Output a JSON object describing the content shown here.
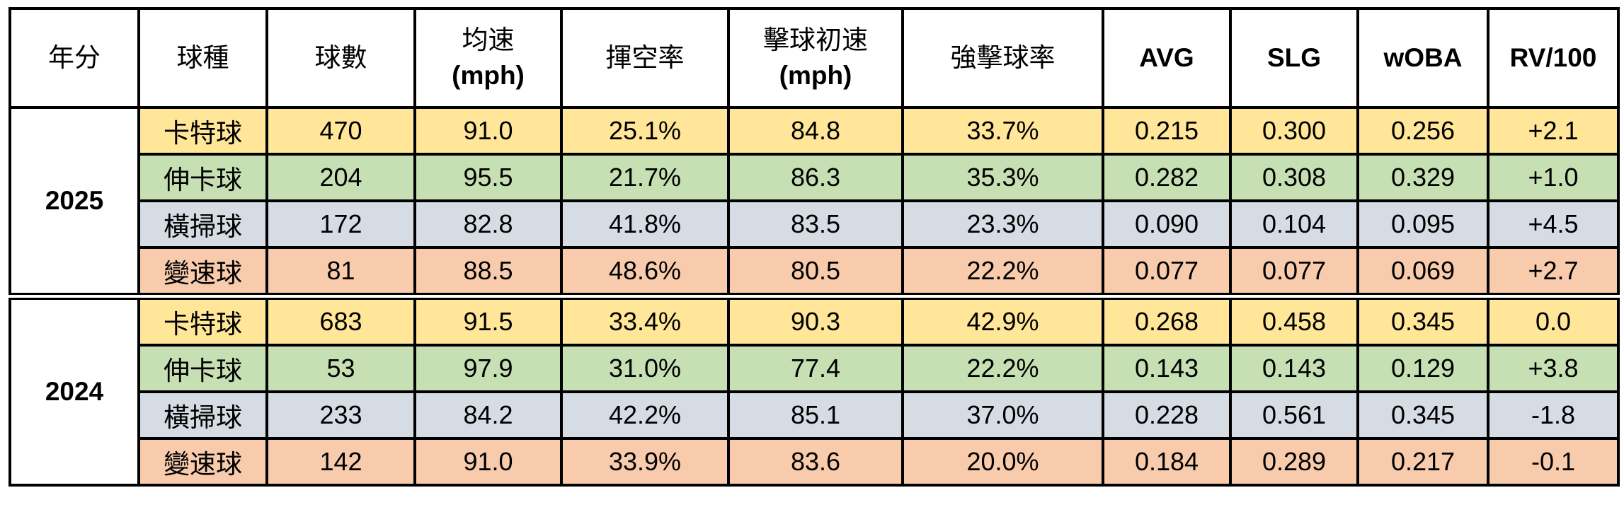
{
  "headers": [
    {
      "label": "年分",
      "unit": ""
    },
    {
      "label": "球種",
      "unit": ""
    },
    {
      "label": "球數",
      "unit": ""
    },
    {
      "label": "均速",
      "unit": "(mph)"
    },
    {
      "label": "揮空率",
      "unit": ""
    },
    {
      "label": "擊球初速",
      "unit": "(mph)"
    },
    {
      "label": "強擊球率",
      "unit": ""
    },
    {
      "label": "AVG",
      "unit": ""
    },
    {
      "label": "SLG",
      "unit": ""
    },
    {
      "label": "wOBA",
      "unit": ""
    },
    {
      "label": "RV/100",
      "unit": ""
    }
  ],
  "pitch_colors": {
    "卡特球": "#FFE699",
    "伸卡球": "#C6E0B4",
    "橫掃球": "#D6DCE4",
    "變速球": "#F8CBAD"
  },
  "groups": [
    {
      "year": "2025",
      "rows": [
        {
          "pitch": "卡特球",
          "count": "470",
          "velo": "91.0",
          "whiff": "25.1%",
          "ev": "84.8",
          "hardhit": "33.7%",
          "avg": "0.215",
          "slg": "0.300",
          "woba": "0.256",
          "rv": "+2.1"
        },
        {
          "pitch": "伸卡球",
          "count": "204",
          "velo": "95.5",
          "whiff": "21.7%",
          "ev": "86.3",
          "hardhit": "35.3%",
          "avg": "0.282",
          "slg": "0.308",
          "woba": "0.329",
          "rv": "+1.0"
        },
        {
          "pitch": "橫掃球",
          "count": "172",
          "velo": "82.8",
          "whiff": "41.8%",
          "ev": "83.5",
          "hardhit": "23.3%",
          "avg": "0.090",
          "slg": "0.104",
          "woba": "0.095",
          "rv": "+4.5"
        },
        {
          "pitch": "變速球",
          "count": "81",
          "velo": "88.5",
          "whiff": "48.6%",
          "ev": "80.5",
          "hardhit": "22.2%",
          "avg": "0.077",
          "slg": "0.077",
          "woba": "0.069",
          "rv": "+2.7"
        }
      ]
    },
    {
      "year": "2024",
      "rows": [
        {
          "pitch": "卡特球",
          "count": "683",
          "velo": "91.5",
          "whiff": "33.4%",
          "ev": "90.3",
          "hardhit": "42.9%",
          "avg": "0.268",
          "slg": "0.458",
          "woba": "0.345",
          "rv": "0.0"
        },
        {
          "pitch": "伸卡球",
          "count": "53",
          "velo": "97.9",
          "whiff": "31.0%",
          "ev": "77.4",
          "hardhit": "22.2%",
          "avg": "0.143",
          "slg": "0.143",
          "woba": "0.129",
          "rv": "+3.8"
        },
        {
          "pitch": "橫掃球",
          "count": "233",
          "velo": "84.2",
          "whiff": "42.2%",
          "ev": "85.1",
          "hardhit": "37.0%",
          "avg": "0.228",
          "slg": "0.561",
          "woba": "0.345",
          "rv": "-1.8"
        },
        {
          "pitch": "變速球",
          "count": "142",
          "velo": "91.0",
          "whiff": "33.9%",
          "ev": "83.6",
          "hardhit": "20.0%",
          "avg": "0.184",
          "slg": "0.289",
          "woba": "0.217",
          "rv": "-0.1"
        }
      ]
    }
  ]
}
